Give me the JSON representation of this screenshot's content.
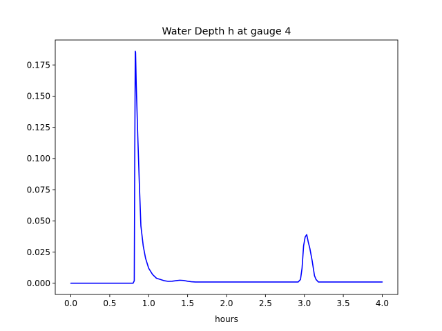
{
  "chart_data": {
    "type": "line",
    "title": "Water Depth h at gauge 4",
    "xlabel": "hours",
    "ylabel": "",
    "xlim": [
      -0.2,
      4.2
    ],
    "ylim": [
      -0.009,
      0.195
    ],
    "grid": false,
    "x_ticks": [
      0.0,
      0.5,
      1.0,
      1.5,
      2.0,
      2.5,
      3.0,
      3.5,
      4.0
    ],
    "x_tick_labels": [
      "0.0",
      "0.5",
      "1.0",
      "1.5",
      "2.0",
      "2.5",
      "3.0",
      "3.5",
      "4.0"
    ],
    "y_ticks": [
      0.0,
      0.025,
      0.05,
      0.075,
      0.1,
      0.125,
      0.15,
      0.175
    ],
    "y_tick_labels": [
      "0.000",
      "0.025",
      "0.050",
      "0.075",
      "0.100",
      "0.125",
      "0.150",
      "0.175"
    ],
    "series": [
      {
        "color": "#0000ff",
        "x": [
          0.0,
          0.5,
          0.8,
          0.815,
          0.822,
          0.828,
          0.832,
          0.84,
          0.86,
          0.88,
          0.9,
          0.93,
          0.96,
          1.0,
          1.05,
          1.1,
          1.15,
          1.2,
          1.25,
          1.3,
          1.35,
          1.4,
          1.45,
          1.5,
          1.55,
          1.6,
          2.0,
          2.5,
          2.92,
          2.95,
          2.97,
          2.99,
          3.01,
          3.03,
          3.05,
          3.07,
          3.1,
          3.13,
          3.15,
          3.18,
          3.22,
          3.3,
          3.5,
          4.0
        ],
        "y": [
          0.0,
          0.0,
          0.0,
          0.002,
          0.11,
          0.186,
          0.185,
          0.16,
          0.118,
          0.08,
          0.046,
          0.03,
          0.02,
          0.012,
          0.007,
          0.004,
          0.003,
          0.002,
          0.0015,
          0.0016,
          0.002,
          0.0024,
          0.0022,
          0.0016,
          0.0012,
          0.001,
          0.001,
          0.001,
          0.001,
          0.003,
          0.012,
          0.03,
          0.037,
          0.039,
          0.033,
          0.028,
          0.018,
          0.006,
          0.003,
          0.001,
          0.001,
          0.001,
          0.001,
          0.001
        ]
      }
    ]
  }
}
